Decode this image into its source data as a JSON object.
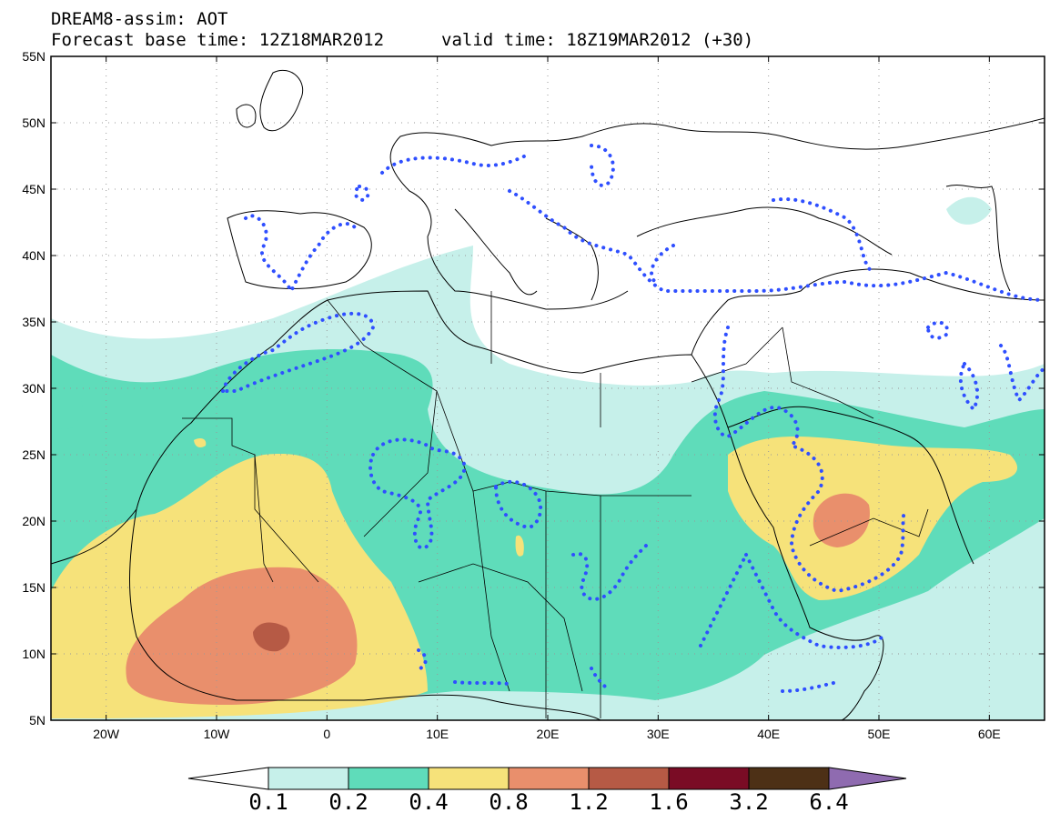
{
  "header": {
    "line1": "DREAM8-assim: AOT",
    "line2a": "Forecast base time: 12Z18MAR2012",
    "line2b": "valid time: 18Z19MAR2012 (+30)"
  },
  "map": {
    "lat_labels": [
      "55N",
      "50N",
      "45N",
      "40N",
      "35N",
      "30N",
      "25N",
      "20N",
      "15N",
      "10N",
      "5N"
    ],
    "lon_labels": [
      "20W",
      "10W",
      "0",
      "10E",
      "20E",
      "30E",
      "40E",
      "50E",
      "60E"
    ],
    "lat_range": [
      5,
      55
    ],
    "lon_range": [
      -25,
      65
    ],
    "grid": "dotted",
    "colors": {
      "c01": "#c6f0ea",
      "c02": "#5fdcba",
      "c04": "#f6e27a",
      "c08": "#e98f6c",
      "c12": "#b65a45",
      "c16": "#7a0c25",
      "c32": "#4d3016",
      "c64": "#8f6bb0",
      "contour": "#2f4fff"
    }
  },
  "colorbar": {
    "labels": [
      "0.1",
      "0.2",
      "0.4",
      "0.8",
      "1.2",
      "1.6",
      "3.2",
      "6.4"
    ],
    "colors": [
      "#c6f0ea",
      "#5fdcba",
      "#f6e27a",
      "#e98f6c",
      "#b65a45",
      "#7a0c25",
      "#4d3016"
    ],
    "under_color": "#ffffff",
    "over_color": "#8f6bb0"
  }
}
